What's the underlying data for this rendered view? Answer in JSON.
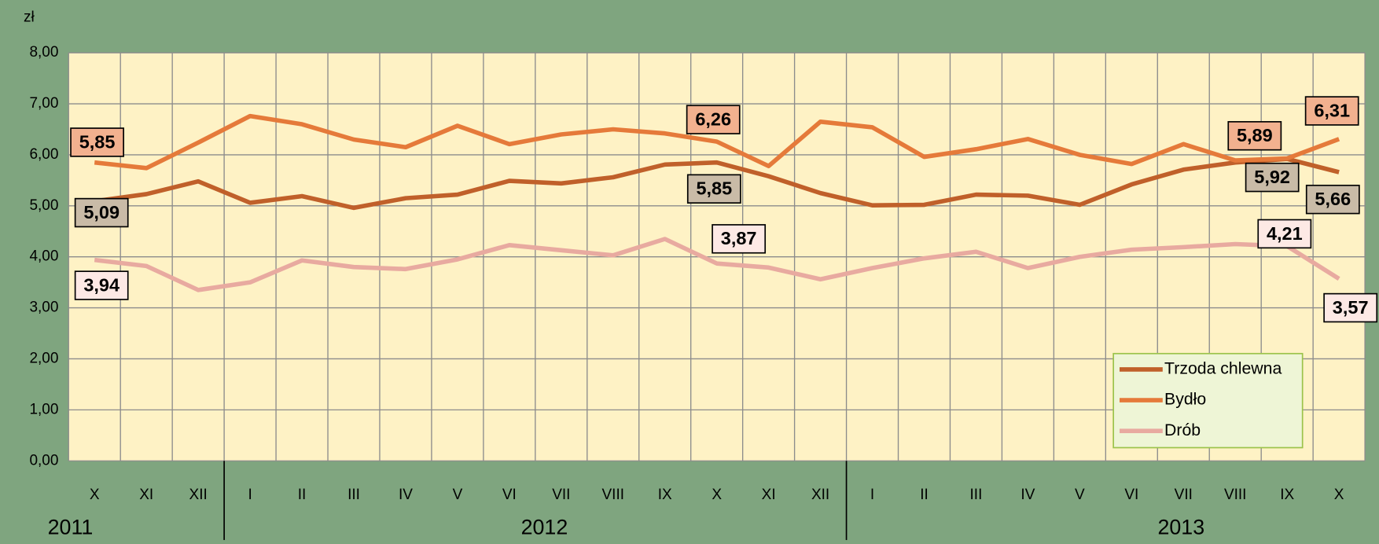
{
  "chart_data": {
    "type": "line",
    "y_unit": "zł",
    "categories": [
      "X",
      "XI",
      "XII",
      "I",
      "II",
      "III",
      "IV",
      "V",
      "VI",
      "VII",
      "VIII",
      "IX",
      "X",
      "XI",
      "XII",
      "I",
      "II",
      "III",
      "IV",
      "V",
      "VI",
      "VII",
      "VIII",
      "IX",
      "X"
    ],
    "years": [
      "2011",
      "2012",
      "2013"
    ],
    "series": [
      {
        "name": "Trzoda chlewna",
        "color": "#c0602a",
        "values": [
          5.09,
          5.23,
          5.48,
          5.06,
          5.19,
          4.96,
          5.15,
          5.22,
          5.49,
          5.44,
          5.56,
          5.81,
          5.85,
          5.58,
          5.25,
          5.01,
          5.02,
          5.22,
          5.2,
          5.02,
          5.42,
          5.71,
          5.85,
          5.92,
          5.66
        ],
        "value_labels": [
          "5,09",
          null,
          null,
          null,
          null,
          null,
          null,
          null,
          null,
          null,
          null,
          null,
          "5,85",
          null,
          null,
          null,
          null,
          null,
          null,
          null,
          null,
          null,
          null,
          "5,92",
          "5,66"
        ],
        "label_fill": "#c9bba7"
      },
      {
        "name": "Bydło",
        "color": "#e57a3a",
        "values": [
          5.85,
          5.74,
          6.24,
          6.76,
          6.6,
          6.3,
          6.15,
          6.57,
          6.21,
          6.4,
          6.5,
          6.42,
          6.26,
          5.78,
          6.65,
          6.54,
          5.96,
          6.11,
          6.31,
          6.0,
          5.82,
          6.21,
          5.89,
          5.93,
          6.31
        ],
        "value_labels": [
          "5,85",
          null,
          null,
          null,
          null,
          null,
          null,
          null,
          null,
          null,
          null,
          null,
          "6,26",
          null,
          null,
          null,
          null,
          null,
          null,
          null,
          null,
          null,
          "5,89",
          null,
          "6,31"
        ],
        "label_fill": "#f2b18f"
      },
      {
        "name": "Drób",
        "color": "#e8aaa0",
        "values": [
          3.94,
          3.82,
          3.35,
          3.5,
          3.93,
          3.8,
          3.76,
          3.95,
          4.23,
          4.13,
          4.03,
          4.35,
          3.87,
          3.79,
          3.56,
          3.78,
          3.97,
          4.1,
          3.78,
          4.0,
          4.14,
          4.19,
          4.25,
          4.21,
          3.57
        ],
        "value_labels": [
          "3,94",
          null,
          null,
          null,
          null,
          null,
          null,
          null,
          null,
          null,
          null,
          null,
          "3,87",
          null,
          null,
          null,
          null,
          null,
          null,
          null,
          null,
          null,
          null,
          "4,21",
          "3,57"
        ],
        "label_fill": "#fde9e5"
      }
    ],
    "ylim": [
      0,
      8
    ],
    "yticks": [
      {
        "value": 0,
        "label": "0,00"
      },
      {
        "value": 1,
        "label": "1,00"
      },
      {
        "value": 2,
        "label": "2,00"
      },
      {
        "value": 3,
        "label": "3,00"
      },
      {
        "value": 4,
        "label": "4,00"
      },
      {
        "value": 5,
        "label": "5,00"
      },
      {
        "value": 6,
        "label": "6,00"
      },
      {
        "value": 7,
        "label": "7,00"
      },
      {
        "value": 8,
        "label": "8,00"
      }
    ],
    "grid": true,
    "legend": "lower right"
  }
}
